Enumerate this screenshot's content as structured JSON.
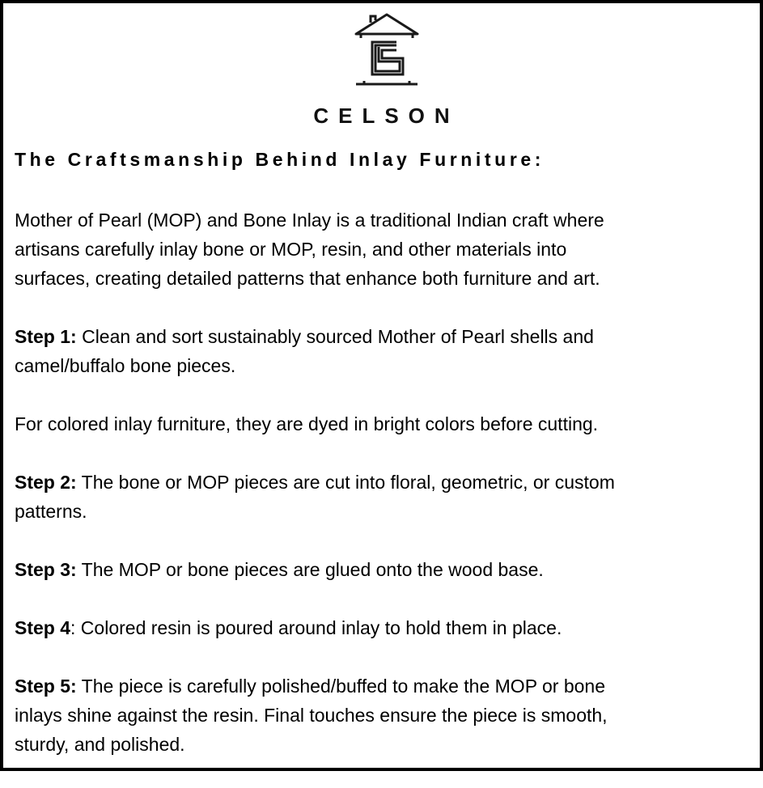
{
  "brand": {
    "name": "CELSON",
    "logo_icon": "house-c-logo-icon"
  },
  "heading": "The Craftsmanship Behind Inlay Furniture:",
  "paragraphs": [
    {
      "label": "",
      "lines": [
        "Mother of Pearl (MOP) and Bone Inlay is a traditional Indian craft where",
        "artisans carefully inlay bone or MOP, resin, and other materials into",
        "surfaces, creating detailed patterns that enhance both furniture and art."
      ]
    },
    {
      "label": "Step 1:",
      "lines": [
        " Clean and sort sustainably sourced Mother of Pearl shells and",
        "camel/buffalo bone pieces."
      ]
    },
    {
      "label": "",
      "lines": [
        "For colored inlay furniture, they are dyed in bright colors before cutting."
      ]
    },
    {
      "label": "Step 2:",
      "lines": [
        " The bone or MOP pieces are cut into floral, geometric, or custom",
        "patterns."
      ]
    },
    {
      "label": "Step 3:",
      "lines": [
        " The MOP or bone pieces are glued onto the wood base."
      ]
    },
    {
      "label": "Step 4",
      "lines": [
        ": Colored resin is poured around inlay to hold them in place."
      ]
    },
    {
      "label": "Step 5:",
      "lines": [
        " The piece is carefully polished/buffed to make the MOP or bone",
        "inlays shine against the resin. Final touches ensure the piece is smooth,",
        "sturdy, and polished."
      ]
    }
  ]
}
